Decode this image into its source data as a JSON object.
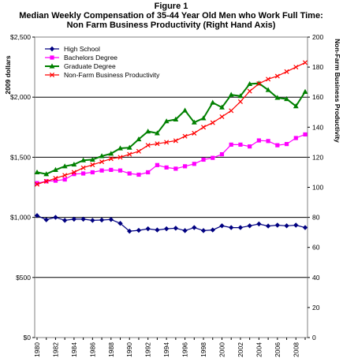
{
  "chart_data": {
    "type": "line",
    "title_lines": [
      "Figure 1",
      "Median Weekly Compensation of 35-44 Year Old Men who Work Full Time:",
      "Non Farm Business Productivity (Right Hand Axis)"
    ],
    "ylabel_left": "2009 dollars",
    "ylabel_right": "Non-Farm Business Productivity",
    "ylim_left": [
      0,
      2500
    ],
    "ylim_right": [
      0,
      200
    ],
    "yticks_left": [
      "$0",
      "$500",
      "$1,000",
      "$1,500",
      "$2,000",
      "$2,500"
    ],
    "yticks_right": [
      "0",
      "20",
      "40",
      "60",
      "80",
      "100",
      "120",
      "140",
      "160",
      "180",
      "200"
    ],
    "x": [
      1980,
      1981,
      1982,
      1983,
      1984,
      1985,
      1986,
      1987,
      1988,
      1989,
      1990,
      1991,
      1992,
      1993,
      1994,
      1995,
      1996,
      1997,
      1998,
      1999,
      2000,
      2001,
      2002,
      2003,
      2004,
      2005,
      2006,
      2007,
      2008,
      2009
    ],
    "xticks": [
      "1980",
      "1982",
      "1984",
      "1986",
      "1988",
      "1990",
      "1992",
      "1994",
      "1996",
      "1998",
      "2000",
      "2002",
      "2004",
      "2006",
      "2008"
    ],
    "grid": "horizontal",
    "legend_position": "top-left",
    "series": [
      {
        "name": "High School",
        "axis": "left",
        "color": "#000080",
        "marker": "diamond",
        "values": [
          1015,
          980,
          1000,
          975,
          985,
          985,
          975,
          978,
          982,
          950,
          885,
          892,
          905,
          895,
          905,
          910,
          890,
          915,
          890,
          895,
          930,
          915,
          915,
          930,
          945,
          928,
          935,
          930,
          935,
          915
        ]
      },
      {
        "name": "Bachelors Degree",
        "axis": "left",
        "color": "#ff00ff",
        "marker": "square",
        "values": [
          1285,
          1300,
          1305,
          1315,
          1360,
          1365,
          1375,
          1390,
          1395,
          1390,
          1365,
          1355,
          1375,
          1435,
          1415,
          1405,
          1425,
          1445,
          1480,
          1495,
          1525,
          1605,
          1605,
          1590,
          1640,
          1635,
          1600,
          1610,
          1660,
          1690
        ]
      },
      {
        "name": "Graduate Degree",
        "axis": "left",
        "color": "#008000",
        "marker": "triangle",
        "values": [
          1375,
          1360,
          1395,
          1425,
          1440,
          1475,
          1480,
          1510,
          1530,
          1575,
          1580,
          1650,
          1715,
          1700,
          1800,
          1815,
          1890,
          1790,
          1825,
          1955,
          1915,
          2020,
          2010,
          2110,
          2115,
          2060,
          1995,
          1985,
          1925,
          2045
        ]
      },
      {
        "name": "Non-Farm Business Productivity",
        "axis": "right",
        "color": "#ff0000",
        "marker": "x",
        "values": [
          102,
          104,
          106,
          108,
          110,
          113,
          115,
          117,
          119,
          120,
          122,
          124,
          128,
          129,
          130,
          131,
          134,
          136,
          140,
          143,
          147,
          151,
          157,
          164,
          169,
          172,
          174,
          177,
          180,
          183
        ]
      }
    ]
  }
}
